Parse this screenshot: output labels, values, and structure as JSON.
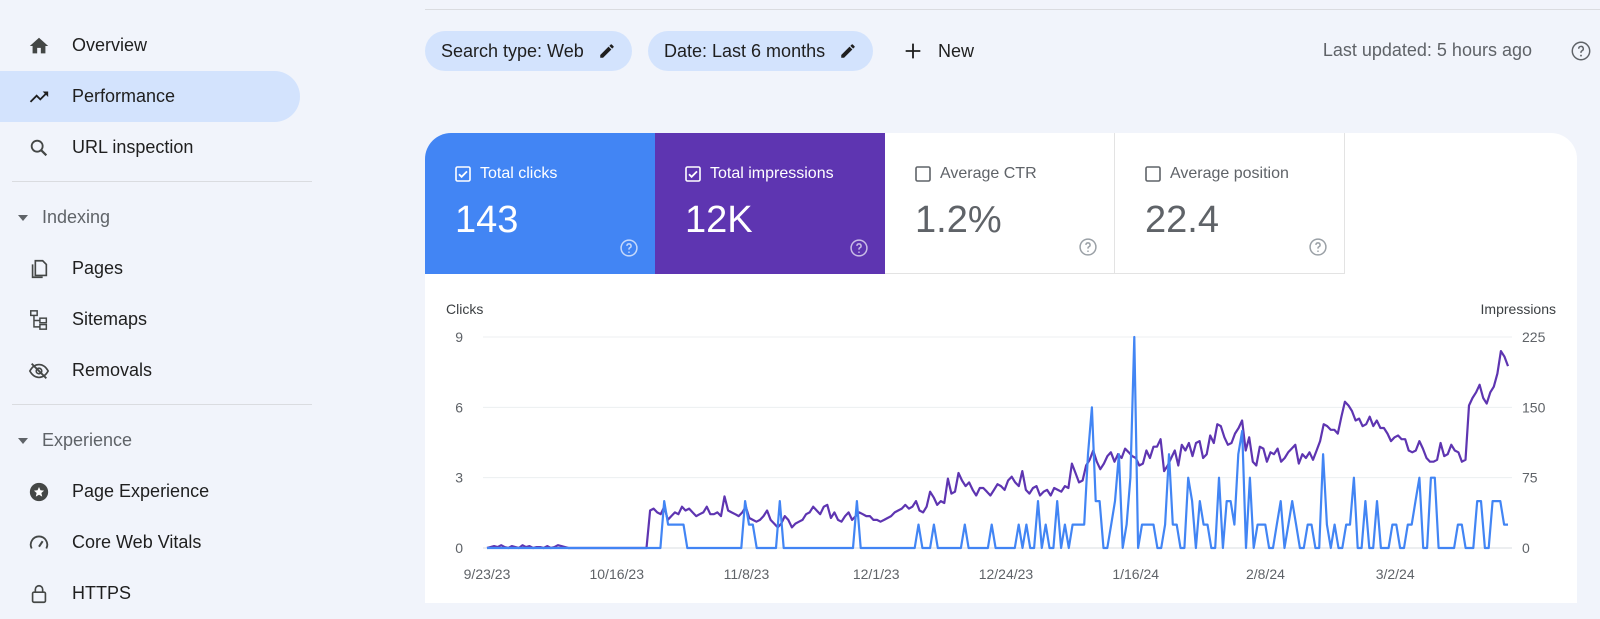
{
  "sidebar": {
    "items": [
      {
        "label": "Overview",
        "icon": "home-icon"
      },
      {
        "label": "Performance",
        "icon": "trending-up-icon",
        "active": true
      },
      {
        "label": "URL inspection",
        "icon": "search-icon"
      }
    ],
    "sections": [
      {
        "title": "Indexing",
        "items": [
          {
            "label": "Pages",
            "icon": "pages-icon"
          },
          {
            "label": "Sitemaps",
            "icon": "sitemap-icon"
          },
          {
            "label": "Removals",
            "icon": "eye-off-icon"
          }
        ]
      },
      {
        "title": "Experience",
        "items": [
          {
            "label": "Page Experience",
            "icon": "star-circle-icon"
          },
          {
            "label": "Core Web Vitals",
            "icon": "speed-gauge-icon"
          },
          {
            "label": "HTTPS",
            "icon": "lock-icon"
          }
        ]
      }
    ]
  },
  "toolbar": {
    "search_type_chip": "Search type: Web",
    "date_chip": "Date: Last 6 months",
    "new_label": "New",
    "last_updated": "Last updated: 5 hours ago"
  },
  "metrics": [
    {
      "label": "Total clicks",
      "value": "143",
      "checked": true,
      "color": "#4285f4"
    },
    {
      "label": "Total impressions",
      "value": "12K",
      "checked": true,
      "color": "#5e35b1"
    },
    {
      "label": "Average CTR",
      "value": "1.2%",
      "checked": false
    },
    {
      "label": "Average position",
      "value": "22.4",
      "checked": false
    }
  ],
  "chart_data": {
    "type": "line",
    "y_left_label": "Clicks",
    "y_right_label": "Impressions",
    "y_left_ticks": [
      "0",
      "3",
      "6",
      "9"
    ],
    "y_right_ticks": [
      "0",
      "75",
      "150",
      "225"
    ],
    "y_left_range": [
      0,
      9
    ],
    "y_right_range": [
      0,
      225
    ],
    "x_tick_labels": [
      "9/23/23",
      "10/16/23",
      "11/8/23",
      "12/1/23",
      "12/24/23",
      "1/16/24",
      "2/8/24",
      "3/2/24"
    ],
    "x_range": [
      "2023-09-23",
      "2024-03-22"
    ],
    "series": [
      {
        "name": "Clicks",
        "axis": "left",
        "color": "#4285f4",
        "values": [
          0,
          0,
          0,
          0,
          0,
          0,
          0,
          0,
          0,
          0,
          0,
          0,
          0,
          0,
          0,
          0,
          0,
          0,
          0,
          0,
          0,
          0,
          0,
          0,
          0,
          0,
          0,
          0,
          0,
          0,
          0,
          0,
          0,
          0,
          0,
          0,
          0,
          0,
          0,
          0,
          0,
          0,
          0,
          0,
          0,
          0,
          2,
          1,
          1,
          1,
          1,
          1,
          0,
          0,
          0,
          0,
          0,
          0,
          0,
          0,
          0,
          0,
          0,
          0,
          0,
          0,
          0,
          2,
          1,
          1,
          0,
          0,
          0,
          0,
          0,
          0,
          2,
          0,
          0,
          0,
          0,
          0,
          0,
          0,
          0,
          0,
          0,
          0,
          0,
          0,
          0,
          0,
          0,
          0,
          0,
          0,
          2,
          0,
          0,
          0,
          0,
          0,
          0,
          0,
          0,
          0,
          0,
          0,
          0,
          0,
          0,
          0,
          1,
          0,
          0,
          0,
          1,
          0,
          0,
          0,
          0,
          0,
          0,
          0,
          1,
          0,
          0,
          0,
          0,
          0,
          0,
          1,
          0,
          0,
          0,
          0,
          0,
          0,
          1,
          0,
          1,
          0,
          0,
          2,
          0,
          1,
          0,
          0,
          2,
          0,
          1,
          0,
          1,
          1,
          1,
          1,
          4,
          6,
          2,
          2,
          0,
          0,
          1,
          2,
          4,
          0,
          1,
          3,
          9,
          0,
          1,
          1,
          1,
          1,
          0,
          0,
          1,
          4,
          1,
          1,
          0,
          0,
          3,
          2,
          0,
          2,
          1,
          1,
          0,
          0,
          3,
          0,
          2,
          2,
          1,
          4,
          5,
          0,
          3,
          0,
          1,
          1,
          1,
          0,
          0,
          1,
          2,
          0,
          1,
          2,
          1,
          0,
          0,
          1,
          1,
          0,
          0,
          4,
          1,
          0,
          1,
          0,
          0,
          1,
          1,
          3,
          0,
          0,
          2,
          0,
          0,
          2,
          0,
          0,
          0,
          1,
          1,
          0,
          0,
          1,
          1,
          2,
          3,
          0,
          0,
          3,
          3,
          0,
          0,
          0,
          0,
          0,
          1,
          1,
          0,
          0,
          0,
          2,
          2,
          0,
          0,
          2,
          2,
          2,
          1,
          1
        ]
      },
      {
        "name": "Impressions",
        "axis": "right",
        "color": "#5e35b1",
        "values": [
          0,
          1,
          2,
          1,
          3,
          1,
          0,
          2,
          1,
          0,
          3,
          1,
          2,
          0,
          1,
          1,
          0,
          2,
          0,
          1,
          3,
          2,
          1,
          0,
          0,
          0,
          0,
          0,
          0,
          0,
          0,
          0,
          0,
          0,
          0,
          0,
          0,
          0,
          0,
          0,
          0,
          0,
          0,
          0,
          0,
          0,
          40,
          42,
          38,
          36,
          44,
          30,
          34,
          38,
          36,
          44,
          40,
          42,
          38,
          34,
          36,
          38,
          44,
          36,
          36,
          38,
          34,
          55,
          40,
          38,
          36,
          34,
          38,
          44,
          32,
          30,
          28,
          30,
          34,
          40,
          30,
          26,
          22,
          26,
          34,
          30,
          22,
          26,
          28,
          30,
          36,
          38,
          44,
          40,
          36,
          44,
          46,
          32,
          38,
          30,
          28,
          34,
          38,
          30,
          34,
          38,
          36,
          34,
          34,
          30,
          30,
          28,
          30,
          32,
          34,
          38,
          40,
          42,
          46,
          42,
          44,
          50,
          40,
          38,
          44,
          60,
          54,
          46,
          50,
          48,
          74,
          58,
          60,
          80,
          72,
          66,
          70,
          62,
          56,
          64,
          64,
          60,
          56,
          62,
          68,
          66,
          62,
          72,
          76,
          70,
          66,
          82,
          62,
          58,
          64,
          66,
          56,
          60,
          62,
          56,
          64,
          62,
          60,
          66,
          64,
          90,
          80,
          70,
          72,
          88,
          94,
          104,
          92,
          84,
          90,
          98,
          102,
          92,
          100,
          96,
          106,
          102,
          98,
          96,
          88,
          90,
          104,
          96,
          108,
          108,
          116,
          82,
          88,
          96,
          104,
          88,
          110,
          104,
          112,
          98,
          112,
          114,
          96,
          100,
          120,
          112,
          132,
          130,
          118,
          110,
          112,
          122,
          128,
          136,
          104,
          118,
          92,
          88,
          108,
          106,
          92,
          102,
          100,
          106,
          92,
          96,
          102,
          106,
          110,
          90,
          100,
          96,
          102,
          94,
          104,
          114,
          132,
          130,
          126,
          126,
          122,
          140,
          156,
          152,
          146,
          136,
          138,
          130,
          132,
          140,
          130,
          136,
          128,
          128,
          122,
          114,
          118,
          120,
          116,
          116,
          104,
          102,
          104,
          114,
          106,
          96,
          92,
          92,
          94,
          112,
          98,
          100,
          110,
          104,
          102,
          92,
          94,
          152,
          160,
          166,
          174,
          160,
          154,
          166,
          172,
          186,
          210,
          204,
          194
        ]
      }
    ],
    "grid": true,
    "legend": "none"
  }
}
